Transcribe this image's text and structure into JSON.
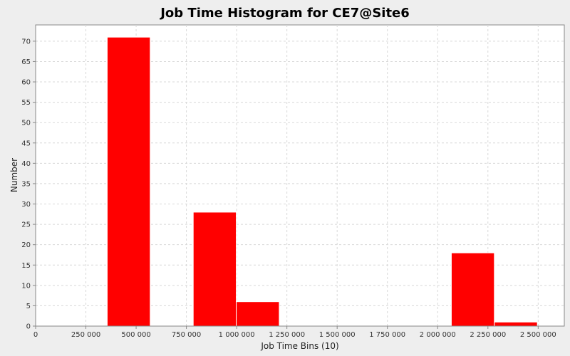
{
  "chart_data": {
    "type": "bar",
    "title": "Job Time Histogram for CE7@Site6",
    "xlabel": "Job Time Bins (10)",
    "ylabel": "Number",
    "xlim": [
      0,
      2630000
    ],
    "ylim": [
      0,
      74
    ],
    "x_ticks": [
      0,
      250000,
      500000,
      750000,
      1000000,
      1250000,
      1500000,
      1750000,
      2000000,
      2250000,
      2500000
    ],
    "x_tick_labels": [
      "0",
      "250 000",
      "500 000",
      "750 000",
      "1 000 000",
      "1 250 000",
      "1 500 000",
      "1 750 000",
      "2 000 000",
      "2 250 000",
      "2 500 000"
    ],
    "y_ticks": [
      0,
      5,
      10,
      15,
      20,
      25,
      30,
      35,
      40,
      45,
      50,
      55,
      60,
      65,
      70
    ],
    "bins": [
      {
        "start": 356000,
        "end": 570000,
        "value": 71
      },
      {
        "start": 570000,
        "end": 784000,
        "value": 0
      },
      {
        "start": 784000,
        "end": 998000,
        "value": 28
      },
      {
        "start": 998000,
        "end": 1212000,
        "value": 6
      },
      {
        "start": 1212000,
        "end": 1426000,
        "value": 0
      },
      {
        "start": 1426000,
        "end": 1640000,
        "value": 0
      },
      {
        "start": 1640000,
        "end": 1854000,
        "value": 0
      },
      {
        "start": 1854000,
        "end": 2068000,
        "value": 0
      },
      {
        "start": 2068000,
        "end": 2282000,
        "value": 18
      },
      {
        "start": 2282000,
        "end": 2496000,
        "value": 1
      }
    ],
    "grid": true,
    "legend": "none",
    "colors": {
      "bar_fill": "#ff0000",
      "bar_stroke": "#ffffff",
      "plot_background": "#ffffff",
      "grid": "#d8d8d8",
      "axis": "#888888"
    }
  }
}
